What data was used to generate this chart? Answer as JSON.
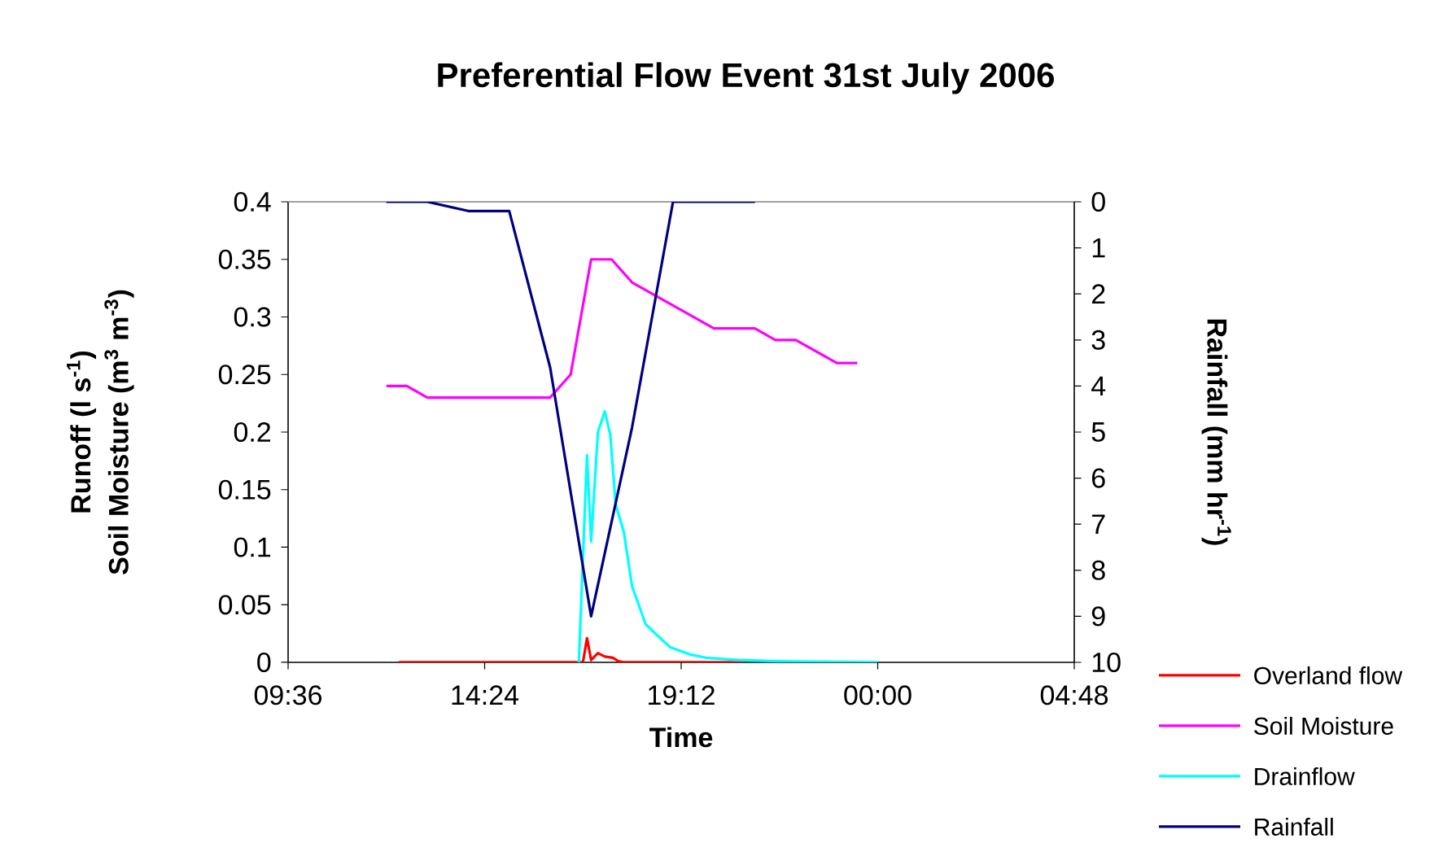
{
  "chart_data": {
    "type": "line",
    "title": "Preferential Flow Event 31st July 2006",
    "xlabel": "Time",
    "ylabel": "Soil Moisture (m$^{3}$ m$^{-3}$)",
    "y2label": "Rainfall (mm hr$^{-1}$)",
    "annotations": [
      "Runoff (l s$^{-1}$)"
    ],
    "xlim": [
      "2006-07-31T09:36",
      "2006-08-01T04:48"
    ],
    "xticks": [
      {
        "value": "2006-07-31T09:36",
        "label": "09:36"
      },
      {
        "value": "2006-07-31T14:24",
        "label": "14:24"
      },
      {
        "value": "2006-07-31T19:12",
        "label": "19:12"
      },
      {
        "value": "2006-08-01T00:00",
        "label": "00:00"
      },
      {
        "value": "2006-08-01T04:48",
        "label": "04:48"
      }
    ],
    "ylim": [
      0,
      0.4
    ],
    "yticks": [
      0,
      0.05,
      0.1,
      0.15,
      0.2,
      0.25,
      0.3,
      0.35,
      0.4
    ],
    "y2lim": [
      10,
      0
    ],
    "y2ticks": [
      0,
      1,
      2,
      3,
      4,
      5,
      6,
      7,
      8,
      9,
      10
    ],
    "legend": "bottom right",
    "grid": false,
    "marker": "none",
    "series": [
      {
        "name": "Overland flow",
        "color": "#ff0000",
        "x": [
          "2006-07-31T12:18",
          "2006-07-31T16:48",
          "2006-07-31T16:54",
          "2006-07-31T17:00",
          "2006-07-31T17:10",
          "2006-07-31T17:20",
          "2006-07-31T17:32",
          "2006-07-31T17:40",
          "2006-07-31T17:48",
          "2006-07-31T20:42"
        ],
        "values": [
          0,
          0,
          0.021,
          0.002,
          0.008,
          0.005,
          0.004,
          0.001,
          0,
          0
        ]
      },
      {
        "name": "Soil Moisture",
        "color": "#ff00ff",
        "x": [
          "2006-07-31T12:00",
          "2006-07-31T12:30",
          "2006-07-31T13:00",
          "2006-07-31T16:00",
          "2006-07-31T16:30",
          "2006-07-31T17:00",
          "2006-07-31T17:30",
          "2006-07-31T18:00",
          "2006-07-31T20:00",
          "2006-07-31T21:00",
          "2006-07-31T21:30",
          "2006-07-31T22:00",
          "2006-07-31T23:00",
          "2006-07-31T23:30"
        ],
        "values": [
          0.24,
          0.24,
          0.23,
          0.23,
          0.25,
          0.35,
          0.35,
          0.33,
          0.29,
          0.29,
          0.28,
          0.28,
          0.26,
          0.26
        ]
      },
      {
        "name": "Drainflow",
        "color": "#00ffff",
        "x": [
          "2006-07-31T16:42",
          "2006-07-31T16:54",
          "2006-07-31T17:00",
          "2006-07-31T17:10",
          "2006-07-31T17:20",
          "2006-07-31T17:28",
          "2006-07-31T17:36",
          "2006-07-31T17:48",
          "2006-07-31T18:00",
          "2006-07-31T18:20",
          "2006-07-31T18:36",
          "2006-07-31T18:56",
          "2006-07-31T19:24",
          "2006-07-31T19:48",
          "2006-07-31T20:36",
          "2006-07-31T21:36",
          "2006-08-01T00:00"
        ],
        "values": [
          0,
          0.18,
          0.105,
          0.2,
          0.218,
          0.198,
          0.137,
          0.113,
          0.066,
          0.033,
          0.024,
          0.013,
          0.007,
          0.004,
          0.002,
          0.001,
          0
        ]
      },
      {
        "name": "Rainfall",
        "color": "#000080",
        "axis": "y2",
        "x": [
          "2006-07-31T12:00",
          "2006-07-31T13:00",
          "2006-07-31T14:00",
          "2006-07-31T15:00",
          "2006-07-31T16:00",
          "2006-07-31T17:00",
          "2006-07-31T18:00",
          "2006-07-31T19:00",
          "2006-07-31T20:00",
          "2006-07-31T21:00"
        ],
        "values": [
          0,
          0,
          0.2,
          0.2,
          3.6,
          9.0,
          4.9,
          0,
          0,
          0
        ]
      }
    ]
  }
}
